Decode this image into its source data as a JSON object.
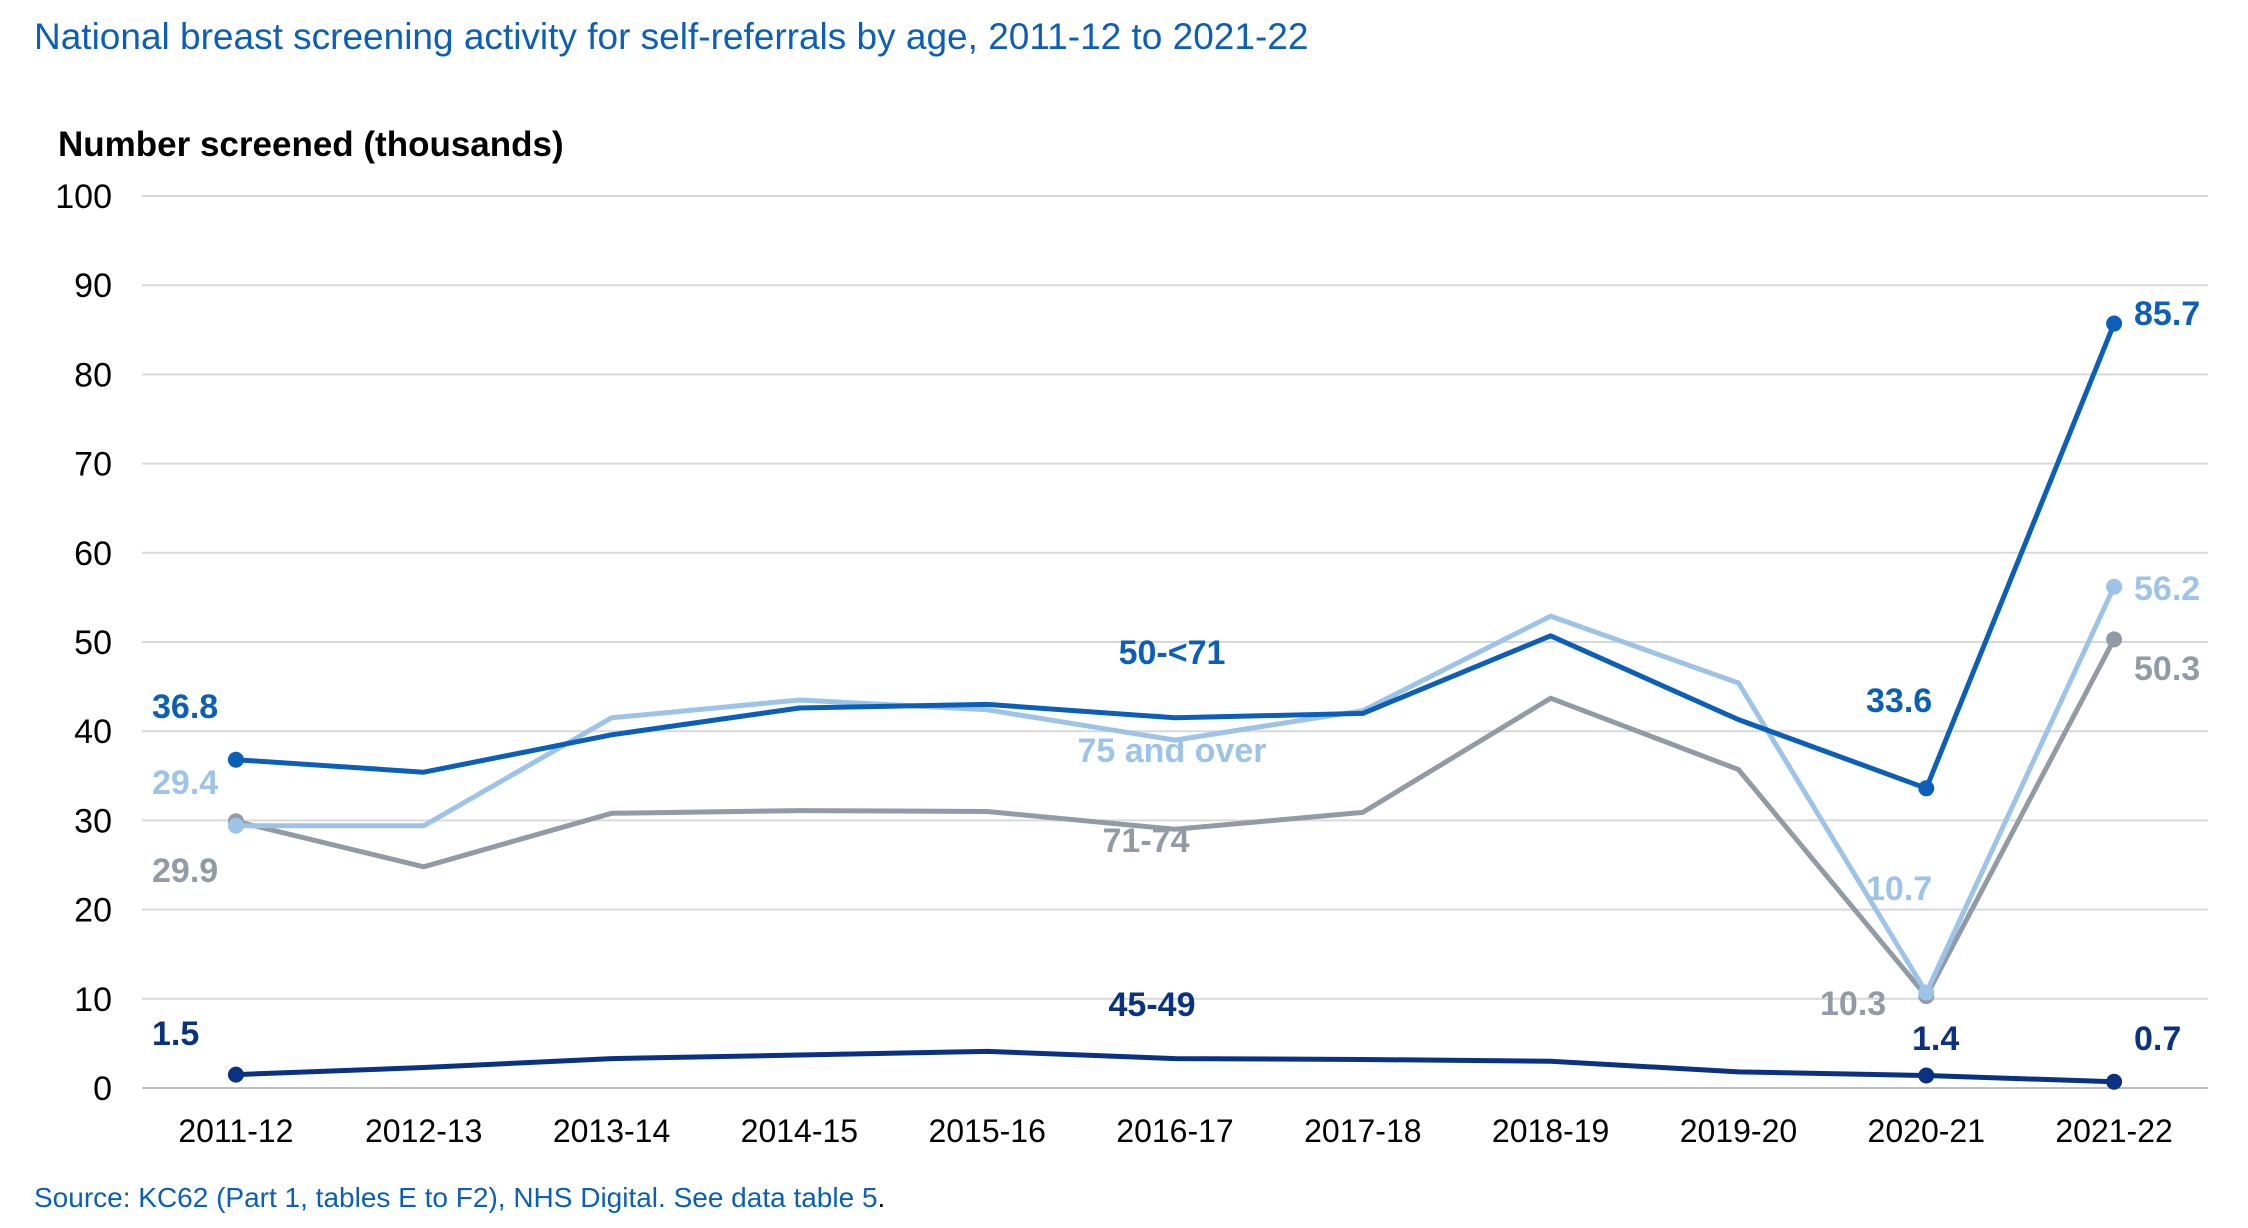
{
  "title": "National breast screening activity for self-referrals by age, 2011-12 to 2021-22",
  "source": {
    "text": "Source: KC62 (Part 1, tables E to F2), NHS Digital. See data table 5",
    "period": "."
  },
  "chart_data": {
    "type": "line",
    "title": "National breast screening activity for self-referrals by age, 2011-12 to 2021-22",
    "ylabel": "Number screened (thousands)",
    "xlabel": "",
    "ylim": [
      0,
      100
    ],
    "yticks": [
      "0",
      "10",
      "20",
      "30",
      "40",
      "50",
      "60",
      "70",
      "80",
      "90",
      "100"
    ],
    "grid": true,
    "legend": "none (series labelled directly on the chart)",
    "categories": [
      "2011-12",
      "2012-13",
      "2013-14",
      "2014-15",
      "2015-16",
      "2016-17",
      "2017-18",
      "2018-19",
      "2019-20",
      "2020-21",
      "2021-22"
    ],
    "series": [
      {
        "name": "50-<71",
        "color": "#0b5fb8",
        "values": [
          36.8,
          35.4,
          39.6,
          42.6,
          43.0,
          41.5,
          42.0,
          50.7,
          41.3,
          33.6,
          85.7
        ],
        "data_labels": [
          {
            "index": 0,
            "text": "36.8"
          },
          {
            "index": 9,
            "text": "33.6"
          },
          {
            "index": 10,
            "text": "85.7"
          }
        ],
        "series_label": "50-<71"
      },
      {
        "name": "75 and over",
        "color": "#9dc4e8",
        "values": [
          29.4,
          29.4,
          41.5,
          43.5,
          42.4,
          39.0,
          42.3,
          52.9,
          45.4,
          10.7,
          56.2
        ],
        "data_labels": [
          {
            "index": 0,
            "text": "29.4"
          },
          {
            "index": 9,
            "text": "10.7"
          },
          {
            "index": 10,
            "text": "56.2"
          }
        ],
        "series_label": "75 and over"
      },
      {
        "name": "71-74",
        "color": "#929ba5",
        "values": [
          29.9,
          24.8,
          30.8,
          31.1,
          31.0,
          29.0,
          30.9,
          43.7,
          35.7,
          10.3,
          50.3
        ],
        "data_labels": [
          {
            "index": 0,
            "text": "29.9"
          },
          {
            "index": 9,
            "text": "10.3"
          },
          {
            "index": 10,
            "text": "50.3"
          }
        ],
        "series_label": "71-74"
      },
      {
        "name": "45-49",
        "color": "#0a3282",
        "values": [
          1.5,
          2.3,
          3.3,
          3.7,
          4.1,
          3.3,
          3.2,
          3.0,
          1.8,
          1.4,
          0.7
        ],
        "data_labels": [
          {
            "index": 0,
            "text": "1.5"
          },
          {
            "index": 9,
            "text": "1.4"
          },
          {
            "index": 10,
            "text": "0.7"
          }
        ],
        "series_label": "45-49"
      }
    ]
  }
}
